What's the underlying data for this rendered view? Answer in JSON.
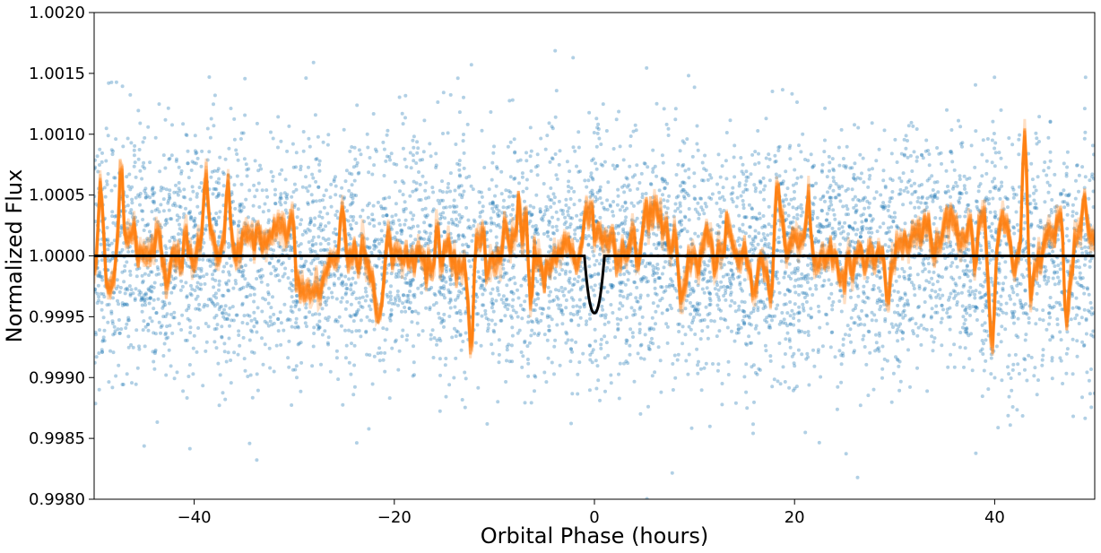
{
  "chart_data": {
    "type": "scatter",
    "title": "",
    "xlabel": "Orbital Phase (hours)",
    "ylabel": "Normalized Flux",
    "xlim": [
      -50,
      50
    ],
    "ylim": [
      0.998,
      1.002
    ],
    "x_ticks": [
      -40,
      -20,
      0,
      20,
      40
    ],
    "x_tick_labels": [
      "−40",
      "−20",
      "0",
      "20",
      "40"
    ],
    "y_ticks": [
      0.998,
      0.9985,
      0.999,
      0.9995,
      1.0,
      1.0005,
      1.001,
      1.0015,
      1.002
    ],
    "y_tick_labels": [
      "0.9980",
      "0.9985",
      "0.9990",
      "0.9995",
      "1.0000",
      "1.0005",
      "1.0010",
      "1.0015",
      "1.0020"
    ],
    "grid": false,
    "legend": "none",
    "series": [
      {
        "kind": "scatter",
        "color": "#1f77b4",
        "opacity": 0.35,
        "description_count": 6000,
        "mean": 1.0,
        "scatter_sigma": 0.0005
      },
      {
        "kind": "band",
        "color": "#ff7f0e",
        "opacity": 0.25,
        "baseline": 1.0,
        "typical_amplitude": 0.00015
      },
      {
        "kind": "line",
        "color": "#000000",
        "baseline": 1.0,
        "transit_center": 0.0,
        "transit_half_width": 1.0,
        "transit_min": 0.99953
      }
    ]
  }
}
